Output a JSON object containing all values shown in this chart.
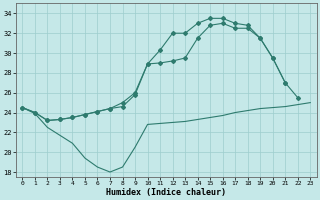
{
  "xlabel": "Humidex (Indice chaleur)",
  "bg_color": "#c5e8e8",
  "line_color": "#2e7b6e",
  "grid_color": "#9ecece",
  "xlim": [
    -0.5,
    23.5
  ],
  "ylim": [
    17.5,
    35
  ],
  "xticks": [
    0,
    1,
    2,
    3,
    4,
    5,
    6,
    7,
    8,
    9,
    10,
    11,
    12,
    13,
    14,
    15,
    16,
    17,
    18,
    19,
    20,
    21,
    22,
    23
  ],
  "yticks": [
    18,
    20,
    22,
    24,
    26,
    28,
    30,
    32,
    34
  ],
  "line1_x": [
    0,
    1,
    2,
    3,
    4,
    5,
    6,
    7,
    8,
    9,
    10,
    11,
    12,
    13,
    14,
    15,
    16,
    17,
    18,
    19,
    20,
    21,
    22,
    23
  ],
  "line1_y": [
    24.5,
    23.9,
    22.5,
    21.7,
    20.9,
    19.4,
    18.5,
    18.0,
    18.5,
    20.5,
    22.8,
    22.9,
    23.0,
    23.1,
    23.3,
    23.5,
    23.7,
    24.0,
    24.2,
    24.4,
    24.5,
    24.6,
    24.8,
    25.0
  ],
  "line2_x": [
    0,
    1,
    2,
    3,
    4,
    5,
    6,
    7,
    8,
    9,
    10,
    11,
    12,
    13,
    14,
    15,
    16,
    17,
    18,
    19,
    20,
    21,
    22,
    23
  ],
  "line2_y": [
    24.5,
    24.0,
    23.2,
    23.3,
    23.5,
    23.8,
    24.1,
    24.4,
    24.6,
    25.8,
    28.9,
    30.3,
    32.0,
    32.0,
    33.0,
    33.5,
    33.5,
    33.0,
    32.8,
    31.5,
    29.5,
    27.0,
    25.5,
    null
  ],
  "line3_x": [
    0,
    1,
    2,
    3,
    4,
    5,
    6,
    7,
    8,
    9,
    10,
    11,
    12,
    13,
    14,
    15,
    16,
    17,
    18,
    19,
    20,
    21,
    22,
    23
  ],
  "line3_y": [
    24.5,
    24.0,
    23.2,
    23.3,
    23.5,
    23.8,
    24.1,
    24.4,
    25.0,
    26.0,
    28.9,
    29.0,
    29.2,
    29.5,
    31.5,
    32.8,
    33.0,
    32.5,
    32.5,
    31.5,
    29.5,
    27.0,
    null,
    null
  ]
}
